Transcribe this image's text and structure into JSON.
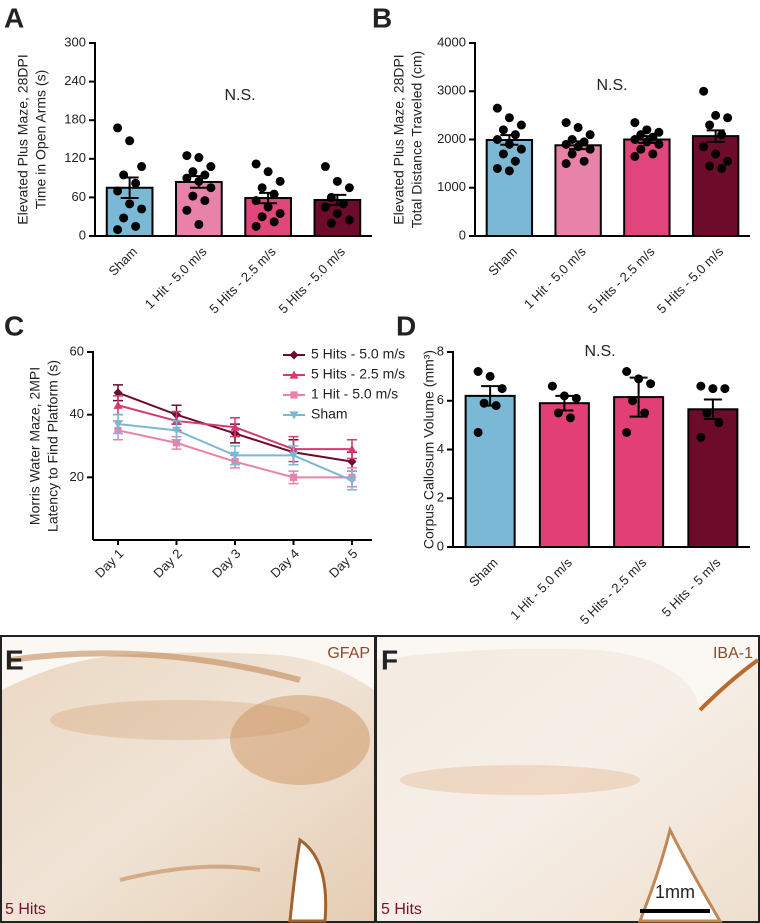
{
  "chart_data": [
    {
      "type": "bar",
      "panel": "A",
      "annotation": "N.S.",
      "y_label": [
        "Elevated Plus Maze, 28DPI",
        "Time in Open Arms (s)"
      ],
      "categories": [
        "Sham",
        "1 Hit - 5.0 m/s",
        "5 Hits - 2.5 m/s",
        "5 Hits - 5.0 m/s"
      ],
      "colors": [
        "#7ab8d6",
        "#e882a8",
        "#e0457b",
        "#6d0c2a"
      ],
      "values": [
        75,
        84,
        59,
        56
      ],
      "errors": [
        16,
        9,
        8,
        8
      ],
      "points": [
        [
          168,
          148,
          108,
          95,
          82,
          70,
          50,
          42,
          28,
          15,
          10
        ],
        [
          125,
          122,
          108,
          100,
          95,
          90,
          85,
          75,
          62,
          55,
          40,
          18
        ],
        [
          112,
          100,
          85,
          75,
          65,
          55,
          45,
          35,
          30,
          22,
          15
        ],
        [
          108,
          85,
          75,
          60,
          50,
          45,
          35,
          25,
          20
        ]
      ],
      "ylim": [
        0,
        300
      ],
      "yticks": [
        0,
        60,
        120,
        180,
        240,
        300
      ]
    },
    {
      "type": "bar",
      "panel": "B",
      "annotation": "N.S.",
      "y_label": [
        "Elevated Plus Maze, 28DPI",
        "Total Distance Traveled (cm)"
      ],
      "categories": [
        "Sham",
        "1 Hit - 5.0 m/s",
        "5 Hits - 2.5 m/s",
        "5 Hits - 5.0 m/s"
      ],
      "colors": [
        "#7ab8d6",
        "#e882a8",
        "#e0457b",
        "#6d0c2a"
      ],
      "values": [
        1990,
        1880,
        2000,
        2070
      ],
      "errors": [
        100,
        80,
        70,
        120
      ],
      "points": [
        [
          2650,
          2450,
          2300,
          2200,
          2100,
          2000,
          1900,
          1800,
          1700,
          1550,
          1400,
          1350
        ],
        [
          2350,
          2250,
          2100,
          2000,
          1950,
          1900,
          1850,
          1800,
          1700,
          1550,
          1500
        ],
        [
          2350,
          2200,
          2150,
          2100,
          2050,
          2000,
          1950,
          1900,
          1800,
          1700,
          1650
        ],
        [
          3000,
          2500,
          2450,
          2300,
          2100,
          1850,
          1700,
          1550,
          1450,
          1400
        ]
      ],
      "ylim": [
        0,
        4000
      ],
      "yticks": [
        0,
        1000,
        2000,
        3000,
        4000
      ]
    },
    {
      "type": "line",
      "panel": "C",
      "y_label": [
        "Morris Water Maze, 2MPI",
        "Latency to Find Platform (s)"
      ],
      "categories": [
        "Day 1",
        "Day 2",
        "Day 3",
        "Day 4",
        "Day 5"
      ],
      "series": [
        {
          "name": "5 Hits - 5.0 m/s",
          "color": "#6d0c2a",
          "marker": "diamond",
          "values": [
            47,
            40,
            34,
            28,
            25
          ],
          "errors": [
            2.5,
            3,
            3,
            4,
            3
          ]
        },
        {
          "name": "5 Hits - 2.5 m/s",
          "color": "#d63a72",
          "marker": "triangle",
          "values": [
            43,
            38,
            36,
            29,
            29
          ],
          "errors": [
            3,
            3,
            3,
            4,
            3
          ]
        },
        {
          "name": "1 Hit - 5.0 m/s",
          "color": "#e882a8",
          "marker": "square",
          "values": [
            35,
            31,
            25,
            20,
            20
          ],
          "errors": [
            3,
            2,
            2,
            2,
            3
          ]
        },
        {
          "name": "Sham",
          "color": "#7ab8d6",
          "marker": "triangle-down",
          "values": [
            37,
            35,
            27,
            27,
            19
          ],
          "errors": [
            3,
            3,
            3,
            3,
            3
          ]
        }
      ],
      "ylim": [
        0,
        60
      ],
      "yticks": [
        20,
        40,
        60
      ]
    },
    {
      "type": "bar",
      "panel": "D",
      "annotation": "N.S.",
      "y_label": [
        "Corpus Callosum Volume (mm³)"
      ],
      "categories": [
        "Sham",
        "1 Hit - 5.0 m/s",
        "5 Hits - 2.5 m/s",
        "5 Hits - 5 m/s"
      ],
      "colors": [
        "#7ab8d6",
        "#e23f76",
        "#e23f76",
        "#6d0c2a"
      ],
      "values": [
        6.2,
        5.9,
        6.15,
        5.65
      ],
      "errors": [
        0.4,
        0.3,
        0.8,
        0.4
      ],
      "points": [
        [
          7.2,
          7.0,
          6.5,
          5.9,
          5.8,
          4.7
        ],
        [
          6.6,
          6.2,
          6.1,
          5.5,
          5.3
        ],
        [
          7.2,
          6.9,
          6.7,
          6.0,
          5.5,
          4.7
        ],
        [
          6.6,
          6.5,
          6.5,
          5.5,
          5.1,
          4.5
        ]
      ],
      "ylim": [
        0,
        8
      ],
      "yticks": [
        0,
        2,
        4,
        6,
        8
      ]
    }
  ],
  "images": [
    {
      "panel": "E",
      "stain": "GFAP",
      "group": "5 Hits"
    },
    {
      "panel": "F",
      "stain": "IBA-1",
      "group": "5 Hits"
    }
  ],
  "scale_bar": "1mm"
}
